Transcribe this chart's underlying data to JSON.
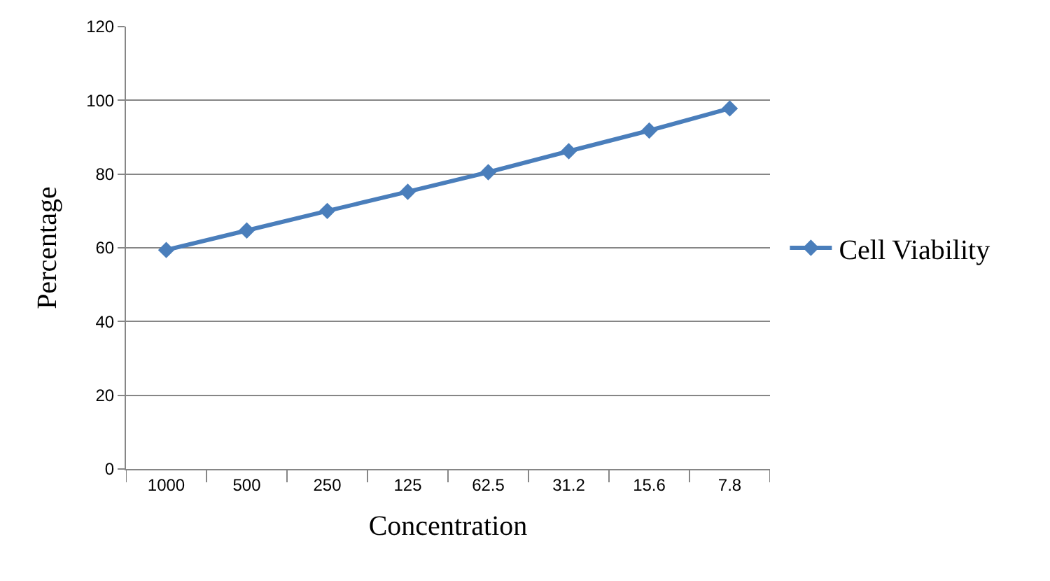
{
  "chart_data": {
    "type": "line",
    "xlabel": "Concentration",
    "ylabel": "Percentage",
    "categories": [
      "1000",
      "500",
      "250",
      "125",
      "62.5",
      "31.2",
      "15.6",
      "7.8"
    ],
    "series": [
      {
        "name": "Cell Viability",
        "color": "#4a7ebb",
        "values": [
          59.4,
          64.7,
          70.0,
          75.2,
          80.5,
          86.2,
          91.8,
          97.8
        ]
      }
    ],
    "ylim": [
      0,
      120
    ],
    "yticks": [
      0,
      20,
      40,
      60,
      80,
      100,
      120
    ],
    "grid": "y",
    "legend": "right",
    "marker": "diamond",
    "line_style": "solid"
  }
}
